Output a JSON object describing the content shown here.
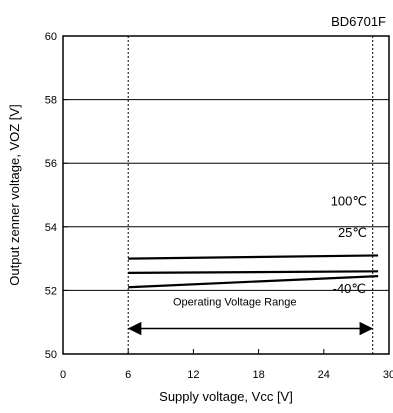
{
  "chart_data": {
    "type": "line",
    "title": "BD6701F",
    "xlabel": "Supply voltage, Vcc [V]",
    "ylabel": "Output zenner voltage, VOZ [V]",
    "xlim": [
      0,
      30
    ],
    "ylim": [
      50,
      60
    ],
    "x_ticks": [
      0,
      6,
      12,
      18,
      24,
      30
    ],
    "y_ticks": [
      50,
      52,
      54,
      56,
      58,
      60
    ],
    "grid": "horizontal",
    "series": [
      {
        "name": "100℃",
        "x": [
          6,
          29
        ],
        "values": [
          53.0,
          53.1
        ]
      },
      {
        "name": "25℃",
        "x": [
          6,
          29
        ],
        "values": [
          52.55,
          52.6
        ]
      },
      {
        "name": "-40℃",
        "x": [
          6,
          29
        ],
        "values": [
          52.1,
          52.45
        ]
      }
    ],
    "annotations": {
      "range_label": "Operating Voltage Range",
      "range_from": 6,
      "range_to": 28.5,
      "range_y": 50.8,
      "boundary_lines": [
        6,
        28.5
      ]
    }
  }
}
